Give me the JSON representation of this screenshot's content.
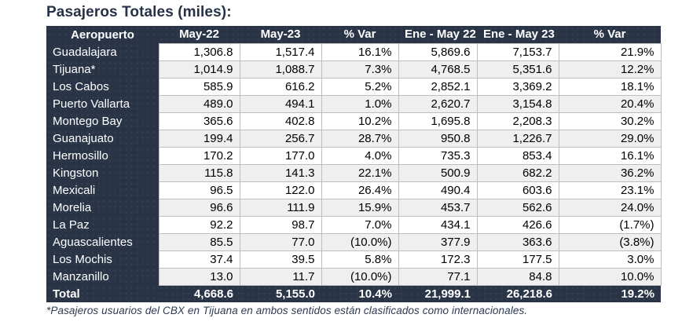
{
  "page_title": "Pasajeros Totales (miles):",
  "footnote": "*Pasajeros usuarios del CBX en Tijuana en ambos sentidos están clasificados como internacionales.",
  "colors": {
    "header_bg": "#2a3447",
    "header_text": "#ffffff",
    "row_alt_bg": "#efefef",
    "cell_border": "#bdbdbd",
    "title_text": "#273247"
  },
  "chart_data": {
    "type": "table",
    "title": "Pasajeros Totales (miles):",
    "columns": [
      "Aeropuerto",
      "May-22",
      "May-23",
      "% Var",
      "Ene - May 22",
      "Ene - May 23",
      "% Var"
    ],
    "rows": [
      [
        "Guadalajara",
        "1,306.8",
        "1,517.4",
        "16.1%",
        "5,869.6",
        "7,153.7",
        "21.9%"
      ],
      [
        "Tijuana*",
        "1,014.9",
        "1,088.7",
        "7.3%",
        "4,768.5",
        "5,351.6",
        "12.2%"
      ],
      [
        "Los Cabos",
        "585.9",
        "616.2",
        "5.2%",
        "2,852.1",
        "3,369.2",
        "18.1%"
      ],
      [
        "Puerto Vallarta",
        "489.0",
        "494.1",
        "1.0%",
        "2,620.7",
        "3,154.8",
        "20.4%"
      ],
      [
        "Montego Bay",
        "365.6",
        "402.8",
        "10.2%",
        "1,695.8",
        "2,208.3",
        "30.2%"
      ],
      [
        "Guanajuato",
        "199.4",
        "256.7",
        "28.7%",
        "950.8",
        "1,226.7",
        "29.0%"
      ],
      [
        "Hermosillo",
        "170.2",
        "177.0",
        "4.0%",
        "735.3",
        "853.4",
        "16.1%"
      ],
      [
        "Kingston",
        "115.8",
        "141.3",
        "22.1%",
        "500.9",
        "682.2",
        "36.2%"
      ],
      [
        "Mexicali",
        "96.5",
        "122.0",
        "26.4%",
        "490.4",
        "603.6",
        "23.1%"
      ],
      [
        "Morelia",
        "96.6",
        "111.9",
        "15.9%",
        "453.7",
        "562.6",
        "24.0%"
      ],
      [
        "La Paz",
        "92.2",
        "98.7",
        "7.0%",
        "434.1",
        "426.6",
        "(1.7%)"
      ],
      [
        "Aguascalientes",
        "85.5",
        "77.0",
        "(10.0%)",
        "377.9",
        "363.6",
        "(3.8%)"
      ],
      [
        "Los Mochis",
        "37.4",
        "39.5",
        "5.8%",
        "172.3",
        "177.5",
        "3.0%"
      ],
      [
        "Manzanillo",
        "13.0",
        "11.7",
        "(10.0%)",
        "77.1",
        "84.8",
        "10.0%"
      ]
    ],
    "total_row": [
      "Total",
      "4,668.6",
      "5,155.0",
      "10.4%",
      "21,999.1",
      "26,218.6",
      "19.2%"
    ]
  }
}
